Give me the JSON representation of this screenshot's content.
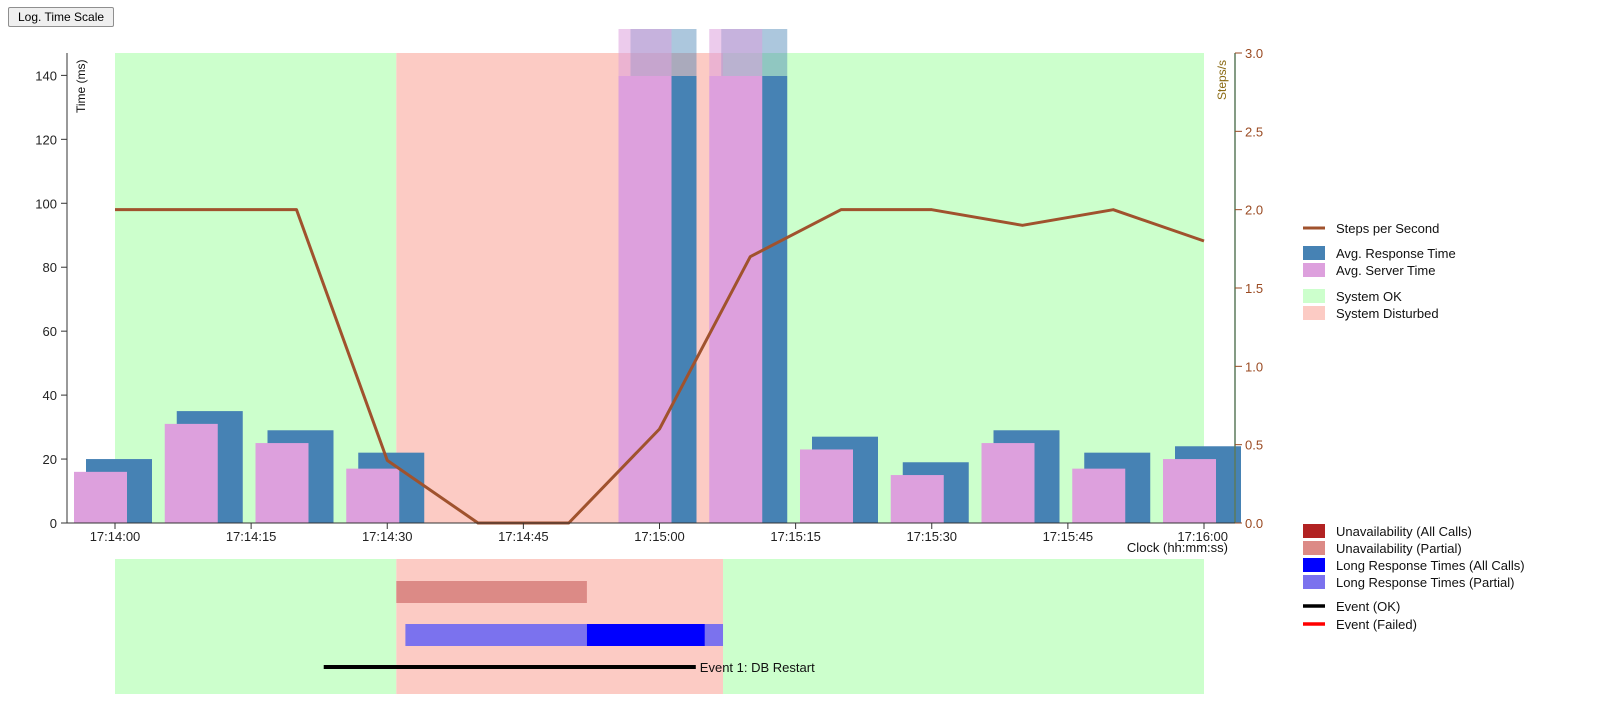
{
  "toolbar": {
    "log_scale_label": "Log. Time Scale"
  },
  "colors": {
    "system_ok": "#ccffcc",
    "system_disturbed": "#fccbc4",
    "avg_response": "#4682b4",
    "avg_server": "#dda0dd",
    "steps_line": "#a0522d",
    "unavail_all": "#b22222",
    "unavail_partial": "#dc8a86",
    "long_all": "#0000ff",
    "long_partial": "#7b72ee",
    "event_ok": "#000000",
    "event_failed": "#ff0000"
  },
  "chart_data": {
    "type": "bar",
    "title": "",
    "xlabel": "Clock (hh:mm:ss)",
    "ylabel": "Time (ms)",
    "y2label": "Steps/s",
    "ylim": [
      0,
      145
    ],
    "y2lim": [
      0,
      3.0
    ],
    "xlim": [
      "17:14:00",
      "17:16:00"
    ],
    "x_ticks": [
      "17:14:00",
      "17:14:15",
      "17:14:30",
      "17:14:45",
      "17:15:00",
      "17:15:15",
      "17:15:30",
      "17:15:45",
      "17:16:00"
    ],
    "y_ticks": [
      0,
      20,
      40,
      60,
      80,
      100,
      120,
      140
    ],
    "y2_ticks": [
      "0.0",
      "0.5",
      "1.0",
      "1.5",
      "2.0",
      "2.5",
      "3.0"
    ],
    "grid": false,
    "legend_position": "right",
    "system_status": [
      {
        "status": "System OK",
        "start": "17:14:00",
        "end": "17:14:31"
      },
      {
        "status": "System Disturbed",
        "start": "17:14:31",
        "end": "17:15:07"
      },
      {
        "status": "System OK",
        "start": "17:15:07",
        "end": "17:16:00"
      }
    ],
    "intervals": [
      "17:14:00",
      "17:14:10",
      "17:14:20",
      "17:14:30",
      "17:14:40",
      "17:14:50",
      "17:15:00",
      "17:15:10",
      "17:15:20",
      "17:15:30",
      "17:15:40",
      "17:15:50",
      "17:16:00"
    ],
    "series": [
      {
        "name": "Avg. Response Time",
        "values": [
          20,
          35,
          29,
          22,
          null,
          null,
          150,
          150,
          27,
          19,
          29,
          22,
          24
        ]
      },
      {
        "name": "Avg. Server Time",
        "values": [
          16,
          31,
          25,
          17,
          null,
          null,
          150,
          150,
          23,
          15,
          25,
          17,
          20
        ]
      },
      {
        "name": "Steps per Second",
        "axis": "right",
        "values": [
          2.0,
          2.0,
          2.0,
          0.4,
          0.0,
          0.0,
          0.6,
          1.7,
          2.0,
          2.0,
          1.9,
          2.0,
          1.8
        ]
      }
    ],
    "legend": [
      "Steps per Second",
      "Avg. Response Time",
      "Avg. Server Time",
      "System OK",
      "System Disturbed"
    ],
    "events_timeline": {
      "bars": [
        {
          "type": "Unavailability (Partial)",
          "start": "17:14:31",
          "end": "17:14:52"
        },
        {
          "type": "Long Response Times (Partial)",
          "start": "17:14:32",
          "end": "17:14:52"
        },
        {
          "type": "Long Response Times (All Calls)",
          "start": "17:14:52",
          "end": "17:15:05"
        },
        {
          "type": "Long Response Times (Partial)",
          "start": "17:15:05",
          "end": "17:15:07"
        }
      ],
      "events": [
        {
          "label": "Event 1: DB Restart",
          "status": "Event (OK)",
          "start": "17:14:23",
          "end": "17:15:04"
        }
      ],
      "legend": [
        "Unavailability (All Calls)",
        "Unavailability (Partial)",
        "Long Response Times (All Calls)",
        "Long Response Times (Partial)",
        "Event (OK)",
        "Event (Failed)"
      ]
    }
  }
}
